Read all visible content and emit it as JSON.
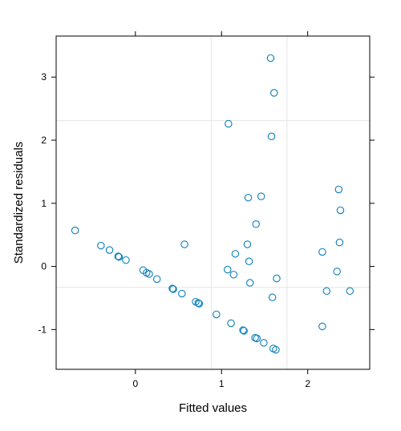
{
  "chart_data": {
    "type": "scatter",
    "xlabel": "Fitted values",
    "ylabel": "Standardized residuals",
    "xlim": [
      -0.92,
      2.72
    ],
    "ylim": [
      -1.63,
      3.65
    ],
    "x_ticks": [
      0,
      1,
      2
    ],
    "x_tick_labels": [
      "0",
      "1",
      "2"
    ],
    "y_ticks": [
      -1,
      0,
      1,
      2,
      3
    ],
    "y_tick_labels": [
      "-1",
      "0",
      "1",
      "2",
      "3"
    ],
    "grid": {
      "vertical": [
        0.88,
        1.76
      ],
      "horizontal": [
        -0.33,
        2.31
      ]
    },
    "marker": "open-circle",
    "point_color": "#0080ff",
    "points": [
      {
        "x": -0.7,
        "y": 0.57
      },
      {
        "x": -0.4,
        "y": 0.33
      },
      {
        "x": -0.3,
        "y": 0.26
      },
      {
        "x": -0.2,
        "y": 0.16
      },
      {
        "x": -0.19,
        "y": 0.15
      },
      {
        "x": -0.11,
        "y": 0.1
      },
      {
        "x": 0.09,
        "y": -0.06
      },
      {
        "x": 0.13,
        "y": -0.1
      },
      {
        "x": 0.16,
        "y": -0.12
      },
      {
        "x": 0.25,
        "y": -0.2
      },
      {
        "x": 0.43,
        "y": -0.35
      },
      {
        "x": 0.44,
        "y": -0.36
      },
      {
        "x": 0.54,
        "y": -0.43
      },
      {
        "x": 0.57,
        "y": 0.35
      },
      {
        "x": 0.7,
        "y": -0.56
      },
      {
        "x": 0.73,
        "y": -0.58
      },
      {
        "x": 0.74,
        "y": -0.59
      },
      {
        "x": 0.94,
        "y": -0.76
      },
      {
        "x": 1.07,
        "y": -0.05
      },
      {
        "x": 1.08,
        "y": 2.26
      },
      {
        "x": 1.11,
        "y": -0.9
      },
      {
        "x": 1.14,
        "y": -0.13
      },
      {
        "x": 1.16,
        "y": 0.2
      },
      {
        "x": 1.25,
        "y": -1.01
      },
      {
        "x": 1.26,
        "y": -1.02
      },
      {
        "x": 1.3,
        "y": 0.35
      },
      {
        "x": 1.31,
        "y": 1.09
      },
      {
        "x": 1.32,
        "y": 0.08
      },
      {
        "x": 1.33,
        "y": -0.26
      },
      {
        "x": 1.39,
        "y": -1.13
      },
      {
        "x": 1.4,
        "y": 0.67
      },
      {
        "x": 1.41,
        "y": -1.14
      },
      {
        "x": 1.46,
        "y": 1.11
      },
      {
        "x": 1.49,
        "y": -1.21
      },
      {
        "x": 1.57,
        "y": 3.3
      },
      {
        "x": 1.58,
        "y": 2.06
      },
      {
        "x": 1.59,
        "y": -0.49
      },
      {
        "x": 1.6,
        "y": -1.3
      },
      {
        "x": 1.61,
        "y": 2.75
      },
      {
        "x": 1.63,
        "y": -1.32
      },
      {
        "x": 1.64,
        "y": -0.19
      },
      {
        "x": 2.17,
        "y": 0.23
      },
      {
        "x": 2.17,
        "y": -0.95
      },
      {
        "x": 2.22,
        "y": -0.39
      },
      {
        "x": 2.34,
        "y": -0.08
      },
      {
        "x": 2.36,
        "y": 1.22
      },
      {
        "x": 2.37,
        "y": 0.38
      },
      {
        "x": 2.38,
        "y": 0.89
      },
      {
        "x": 2.49,
        "y": -0.39
      }
    ]
  }
}
